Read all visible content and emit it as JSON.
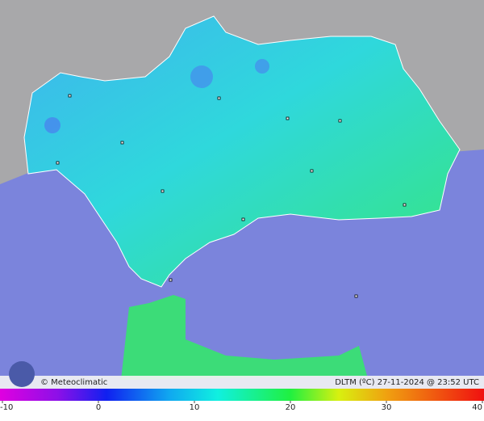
{
  "brand": "© Meteoclimatic",
  "caption": "DLTM (ºC) 27-11-2024 @ 23:52 UTC",
  "colorbar": {
    "range": [
      -10,
      40
    ],
    "ticks": [
      -10,
      0,
      10,
      20,
      30,
      40
    ]
  }
}
